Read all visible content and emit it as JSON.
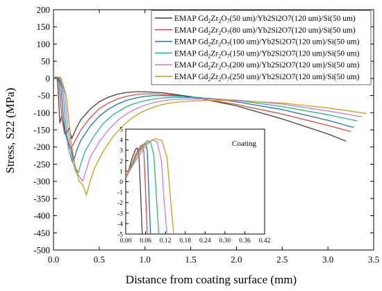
{
  "chart_data": {
    "type": "line",
    "xlabel": "Distance from coating surface (mm)",
    "ylabel": "Stress, S22 (MPa)",
    "xlim": [
      0.0,
      3.5
    ],
    "ylim": [
      -500,
      200
    ],
    "xticks": [
      "0.0",
      "0.5",
      "1.0",
      "1.5",
      "2.0",
      "2.5",
      "3.0",
      "3.5"
    ],
    "yticks": [
      "200",
      "150",
      "100",
      "50",
      "0",
      "-50",
      "-100",
      "-150",
      "-200",
      "-250",
      "-300",
      "-350",
      "-400",
      "-450",
      "-500"
    ],
    "grid": false,
    "legend_position": "top-right",
    "series": [
      {
        "name": "EMAP Gd2Zr2O7(50 um)/Yb2Si2O7(120 um)/Si(50 um)",
        "legend": {
          "prefix": "EMAP Gd",
          "s1": "2",
          "m1": "Zr",
          "s2": "2",
          "m2": "O",
          "s3": "7",
          "rest": "(50 um)/Yb2Si2O7(120 um)/Si(50 um)"
        },
        "color": "#404040",
        "x": [
          0.0,
          0.01,
          0.02,
          0.03,
          0.04,
          0.05,
          0.06,
          0.07,
          0.09,
          0.12,
          0.14,
          0.17,
          0.2,
          0.25,
          0.3,
          0.4,
          0.5,
          0.6,
          0.7,
          0.8,
          0.9,
          1.0,
          1.2,
          1.5,
          2.0,
          2.5,
          3.0,
          3.2
        ],
        "y": [
          2,
          3,
          4,
          3,
          2,
          -30,
          -80,
          -130,
          -110,
          -150,
          -160,
          -145,
          -175,
          -145,
          -120,
          -90,
          -68,
          -55,
          -46,
          -41,
          -39,
          -39,
          -42,
          -53,
          -80,
          -118,
          -162,
          -183
        ]
      },
      {
        "name": "EMAP Gd2Zr2O7(80 um)/Yb2Si2O7(120 um)/Si(50 um)",
        "legend": {
          "prefix": "EMAP Gd",
          "s1": "2",
          "m1": "Zr",
          "s2": "2",
          "m2": "O",
          "s3": "7",
          "rest": "(80 um)/Yb2Si2O7(120 um)/Si(50 um)"
        },
        "color": "#e0483f",
        "x": [
          0.0,
          0.02,
          0.04,
          0.06,
          0.08,
          0.1,
          0.12,
          0.15,
          0.18,
          0.21,
          0.25,
          0.3,
          0.4,
          0.5,
          0.6,
          0.7,
          0.8,
          0.9,
          1.0,
          1.1,
          1.3,
          1.5,
          2.0,
          2.5,
          3.0,
          3.25
        ],
        "y": [
          3,
          4,
          3,
          -10,
          -80,
          -130,
          -160,
          -170,
          -205,
          -195,
          -175,
          -150,
          -115,
          -88,
          -72,
          -60,
          -52,
          -47,
          -45,
          -45,
          -48,
          -55,
          -76,
          -104,
          -137,
          -155
        ]
      },
      {
        "name": "EMAP Gd2Zr2O7(100 um)/Yb2Si2O7(120 um)/Si(50 um)",
        "legend": {
          "prefix": "EMAP Gd",
          "s1": "2",
          "m1": "Zr",
          "s2": "2",
          "m2": "O",
          "s3": "7",
          "rest": "(100 um)/Yb2Si2O7(120 um)/Si(50 um)"
        },
        "color": "#1a6fc4",
        "x": [
          0.0,
          0.02,
          0.05,
          0.08,
          0.1,
          0.13,
          0.16,
          0.19,
          0.22,
          0.26,
          0.3,
          0.4,
          0.5,
          0.6,
          0.7,
          0.8,
          0.9,
          1.0,
          1.1,
          1.2,
          1.4,
          1.6,
          2.0,
          2.5,
          3.0,
          3.28
        ],
        "y": [
          3,
          4,
          3,
          -20,
          -90,
          -160,
          -190,
          -200,
          -240,
          -205,
          -180,
          -140,
          -110,
          -90,
          -75,
          -64,
          -57,
          -52,
          -50,
          -50,
          -52,
          -56,
          -68,
          -91,
          -122,
          -143
        ]
      },
      {
        "name": "EMAP Gd2Zr2O7(150 um)/Yb2Si2O7(120 um)/Si(50 um)",
        "legend": {
          "prefix": "EMAP Gd",
          "s1": "2",
          "m1": "Zr",
          "s2": "2",
          "m2": "O",
          "s3": "7",
          "rest": "(150 um)/Yb2Si2O7(120 um)/Si(50 um)"
        },
        "color": "#2ab37a",
        "x": [
          0.0,
          0.03,
          0.06,
          0.1,
          0.13,
          0.16,
          0.2,
          0.23,
          0.27,
          0.31,
          0.35,
          0.45,
          0.55,
          0.65,
          0.8,
          0.9,
          1.0,
          1.1,
          1.2,
          1.3,
          1.5,
          1.7,
          2.0,
          2.5,
          3.0,
          3.32
        ],
        "y": [
          3,
          4,
          3,
          -30,
          -120,
          -200,
          -240,
          -255,
          -275,
          -240,
          -210,
          -165,
          -130,
          -106,
          -82,
          -72,
          -65,
          -60,
          -57,
          -56,
          -56,
          -58,
          -64,
          -82,
          -106,
          -124
        ]
      },
      {
        "name": "EMAP Gd2Zr2O7(200 um)/Yb2Si2O7(120 um)/Si(50 um)",
        "legend": {
          "prefix": "EMAP Gd",
          "s1": "2",
          "m1": "Zr",
          "s2": "2",
          "m2": "O",
          "s3": "7",
          "rest": "(200 um)/Yb2Si2O7(120 um)/Si(50 um)"
        },
        "color": "#c57ae6",
        "x": [
          0.0,
          0.03,
          0.07,
          0.12,
          0.16,
          0.2,
          0.24,
          0.28,
          0.32,
          0.36,
          0.4,
          0.5,
          0.6,
          0.7,
          0.8,
          0.9,
          1.0,
          1.1,
          1.2,
          1.3,
          1.5,
          1.7,
          2.0,
          2.5,
          3.0,
          3.37
        ],
        "y": [
          3,
          4,
          3,
          -40,
          -150,
          -230,
          -270,
          -285,
          -300,
          -265,
          -230,
          -185,
          -150,
          -123,
          -103,
          -89,
          -78,
          -70,
          -65,
          -62,
          -60,
          -60,
          -63,
          -75,
          -95,
          -112
        ]
      },
      {
        "name": "EMAP Gd2Zr2O7(250 um)/Yb2Si2O7(120 um)/Si(50 um)",
        "legend": {
          "prefix": "EMAP Gd",
          "s1": "2",
          "m1": "Zr",
          "s2": "2",
          "m2": "O",
          "s3": "7",
          "rest": "(250 um)/Yb2Si2O7(120 um)/Si(50 um)"
        },
        "color": "#cf9a14",
        "x": [
          0.0,
          0.04,
          0.08,
          0.14,
          0.19,
          0.24,
          0.28,
          0.32,
          0.36,
          0.4,
          0.45,
          0.55,
          0.65,
          0.75,
          0.85,
          0.95,
          1.05,
          1.15,
          1.25,
          1.35,
          1.5,
          1.7,
          2.0,
          2.5,
          3.0,
          3.42
        ],
        "y": [
          3,
          4,
          3,
          -50,
          -180,
          -260,
          -300,
          -310,
          -340,
          -300,
          -260,
          -210,
          -170,
          -140,
          -117,
          -100,
          -88,
          -79,
          -73,
          -69,
          -66,
          -64,
          -65,
          -72,
          -86,
          -102
        ]
      }
    ],
    "inset": {
      "title": "Coating",
      "xlim": [
        0.0,
        0.42
      ],
      "ylim": [
        -5,
        5
      ],
      "xticks": [
        "0.00",
        "0.06",
        "0.12",
        "0.18",
        "0.24",
        "0.30",
        "0.36",
        "0.42"
      ],
      "yticks": [
        "5",
        "4",
        "3",
        "2",
        "1",
        "0",
        "-1",
        "-2",
        "-3",
        "-4",
        "-5"
      ],
      "series": [
        {
          "color": "#404040",
          "x": [
            0.0,
            0.01,
            0.02,
            0.03,
            0.035,
            0.04,
            0.045,
            0.05
          ],
          "y": [
            0.3,
            1.2,
            2.3,
            3.1,
            3.2,
            2.5,
            -1,
            -5
          ]
        },
        {
          "color": "#e0483f",
          "x": [
            0.0,
            0.015,
            0.03,
            0.045,
            0.05,
            0.055,
            0.06,
            0.065
          ],
          "y": [
            0.3,
            1.4,
            2.6,
            3.4,
            3.5,
            2.8,
            -1,
            -5
          ]
        },
        {
          "color": "#1a6fc4",
          "x": [
            0.0,
            0.02,
            0.04,
            0.055,
            0.06,
            0.065,
            0.07,
            0.075
          ],
          "y": [
            0.3,
            1.6,
            2.9,
            3.6,
            3.6,
            3.0,
            -1,
            -5
          ]
        },
        {
          "color": "#2ab37a",
          "x": [
            0.0,
            0.02,
            0.045,
            0.065,
            0.075,
            0.085,
            0.092,
            0.1
          ],
          "y": [
            0.4,
            1.8,
            3.2,
            3.9,
            3.8,
            2.5,
            -1,
            -5
          ]
        },
        {
          "color": "#c57ae6",
          "x": [
            0.0,
            0.03,
            0.06,
            0.08,
            0.095,
            0.108,
            0.115,
            0.125
          ],
          "y": [
            0.4,
            2.0,
            3.4,
            4.0,
            3.8,
            2.0,
            -1.5,
            -5
          ]
        },
        {
          "color": "#cf9a14",
          "x": [
            0.0,
            0.03,
            0.06,
            0.09,
            0.11,
            0.125,
            0.135,
            0.145
          ],
          "y": [
            0.5,
            2.3,
            3.6,
            4.1,
            3.9,
            2.3,
            -1.5,
            -5
          ]
        }
      ]
    }
  }
}
